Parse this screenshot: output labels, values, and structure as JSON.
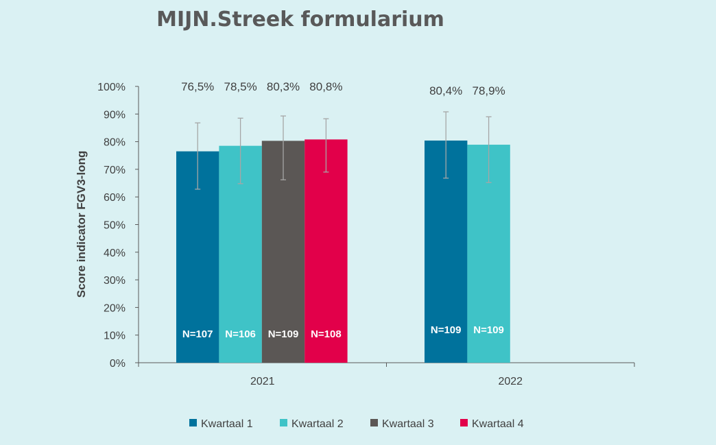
{
  "chart_data": {
    "type": "bar",
    "title": "MIJN.Streek formularium",
    "ylabel": "Score indicator FGV3-long",
    "xlabel": "",
    "categories": [
      "2021",
      "2022"
    ],
    "ylim": [
      0,
      100
    ],
    "yticks": [
      "0%",
      "10%",
      "20%",
      "30%",
      "40%",
      "50%",
      "60%",
      "70%",
      "80%",
      "90%",
      "100%"
    ],
    "grid": false,
    "legend_position": "bottom",
    "series": [
      {
        "name": "Kwartaal 1",
        "color": "#00729c",
        "values": [
          76.5,
          80.4
        ],
        "value_labels": [
          "76,5%",
          "80,4%"
        ],
        "n_labels": [
          "N=107",
          "N=109"
        ],
        "error_low": [
          62.8,
          66.8
        ],
        "error_high": [
          86.8,
          90.8
        ]
      },
      {
        "name": "Kwartaal 2",
        "color": "#3fc3c7",
        "values": [
          78.5,
          78.9
        ],
        "value_labels": [
          "78,5%",
          "78,9%"
        ],
        "n_labels": [
          "N=106",
          "N=109"
        ],
        "error_low": [
          64.8,
          65.2
        ],
        "error_high": [
          88.5,
          89.0
        ]
      },
      {
        "name": "Kwartaal 3",
        "color": "#5b5755",
        "values": [
          80.3,
          null
        ],
        "value_labels": [
          "80,3%",
          null
        ],
        "n_labels": [
          "N=109",
          null
        ],
        "error_low": [
          66.2,
          null
        ],
        "error_high": [
          89.3,
          null
        ]
      },
      {
        "name": "Kwartaal 4",
        "color": "#e2004a",
        "values": [
          80.8,
          null
        ],
        "value_labels": [
          "80,8%",
          null
        ],
        "n_labels": [
          "N=108",
          null
        ],
        "error_low": [
          69.0,
          null
        ],
        "error_high": [
          88.3,
          null
        ]
      }
    ]
  }
}
